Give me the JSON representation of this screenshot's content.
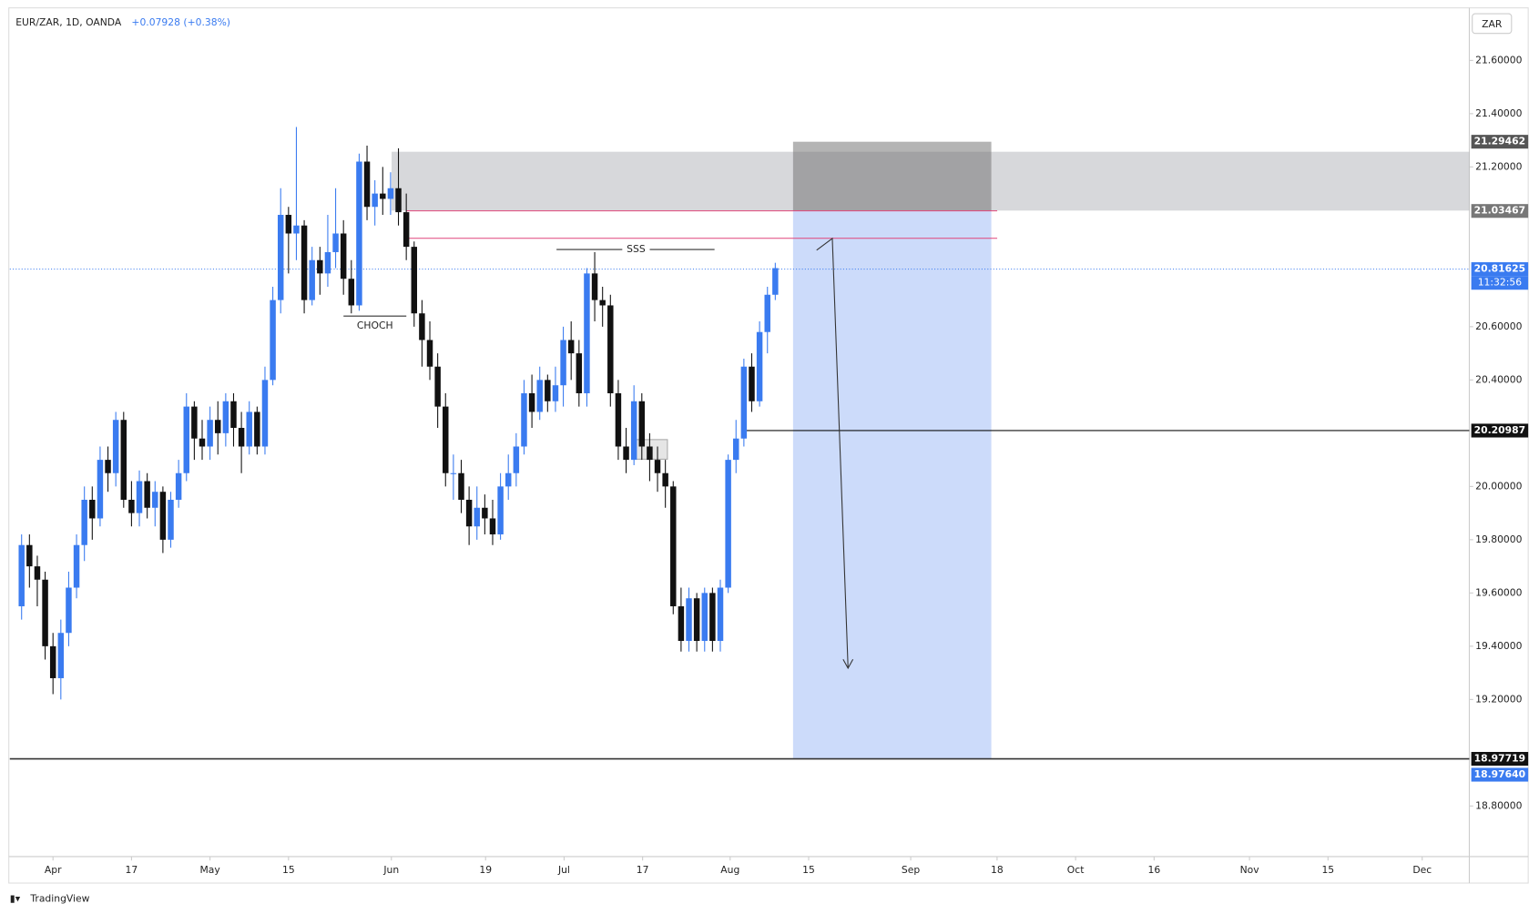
{
  "chart_data": {
    "type": "candlestick",
    "title": "EUR/ZAR, 1D, OANDA",
    "change": "+0.07928 (+0.38%)",
    "currency": "ZAR",
    "watermark": "TradingView",
    "up_color": "#3a7bf0",
    "down_color": "#111111",
    "open": [
      19.55,
      19.78,
      19.7,
      19.65,
      19.4,
      19.28,
      19.45,
      19.62,
      19.78,
      19.95,
      19.88,
      20.1,
      20.05,
      20.25,
      19.95,
      19.9,
      20.02,
      19.92,
      19.98,
      19.8,
      19.95,
      20.05,
      20.3,
      20.18,
      20.15,
      20.25,
      20.2,
      20.32,
      20.22,
      20.15,
      20.28,
      20.15,
      20.4,
      20.7,
      21.02,
      20.95,
      20.98,
      20.7,
      20.85,
      20.8,
      20.88,
      20.95,
      20.78,
      20.68,
      21.22,
      21.05,
      21.1,
      21.08,
      21.12,
      21.03,
      20.9,
      20.65,
      20.55,
      20.45,
      20.3,
      20.05,
      20.05,
      19.95,
      19.85,
      19.92,
      19.88,
      19.82,
      20.0,
      20.05,
      20.15,
      20.35,
      20.28,
      20.4,
      20.32,
      20.38,
      20.55,
      20.5,
      20.35,
      20.8,
      20.7,
      20.68,
      20.35,
      20.15,
      20.1,
      20.32,
      20.15,
      20.1,
      20.05,
      20.0,
      19.55,
      19.42,
      19.58,
      19.42,
      19.6,
      19.42,
      19.62,
      20.1,
      20.18,
      20.45,
      20.32,
      20.58,
      20.72
    ],
    "high": [
      19.82,
      19.82,
      19.74,
      19.68,
      19.45,
      19.5,
      19.68,
      19.82,
      20.0,
      20.0,
      20.15,
      20.15,
      20.28,
      20.28,
      20.02,
      20.06,
      20.05,
      20.02,
      20.0,
      19.98,
      20.1,
      20.35,
      20.32,
      20.25,
      20.3,
      20.32,
      20.35,
      20.35,
      20.28,
      20.32,
      20.3,
      20.45,
      20.75,
      21.12,
      21.05,
      21.35,
      21.0,
      20.9,
      20.9,
      21.02,
      21.12,
      21.0,
      20.85,
      21.25,
      21.28,
      21.15,
      21.2,
      21.18,
      21.27,
      21.1,
      20.92,
      20.7,
      20.62,
      20.5,
      20.35,
      20.12,
      20.1,
      20.0,
      20.0,
      19.97,
      19.95,
      20.05,
      20.12,
      20.2,
      20.4,
      20.42,
      20.45,
      20.42,
      20.45,
      20.6,
      20.62,
      20.55,
      20.82,
      20.88,
      20.75,
      20.72,
      20.4,
      20.22,
      20.38,
      20.35,
      20.2,
      20.15,
      20.1,
      20.02,
      19.62,
      19.62,
      19.6,
      19.62,
      19.62,
      19.65,
      20.12,
      20.25,
      20.48,
      20.5,
      20.62,
      20.75,
      20.84
    ],
    "low": [
      19.5,
      19.62,
      19.55,
      19.35,
      19.22,
      19.2,
      19.4,
      19.58,
      19.72,
      19.8,
      19.85,
      19.98,
      20.0,
      19.92,
      19.85,
      19.85,
      19.88,
      19.85,
      19.75,
      19.77,
      19.92,
      20.02,
      20.1,
      20.1,
      20.1,
      20.12,
      20.15,
      20.15,
      20.05,
      20.12,
      20.12,
      20.12,
      20.38,
      20.65,
      20.8,
      20.85,
      20.65,
      20.68,
      20.72,
      20.75,
      20.82,
      20.72,
      20.65,
      20.66,
      21.0,
      20.98,
      21.02,
      21.02,
      20.98,
      20.85,
      20.6,
      20.45,
      20.4,
      20.22,
      20.0,
      19.95,
      19.9,
      19.78,
      19.8,
      19.82,
      19.78,
      19.8,
      19.95,
      20.0,
      20.12,
      20.22,
      20.25,
      20.28,
      20.28,
      20.3,
      20.4,
      20.3,
      20.3,
      20.62,
      20.6,
      20.3,
      20.1,
      20.05,
      20.08,
      20.1,
      20.02,
      19.98,
      19.92,
      19.52,
      19.38,
      19.38,
      19.38,
      19.38,
      19.38,
      19.38,
      19.6,
      20.05,
      20.15,
      20.28,
      20.3,
      20.5,
      20.7
    ],
    "close": [
      19.78,
      19.7,
      19.65,
      19.4,
      19.28,
      19.45,
      19.62,
      19.78,
      19.95,
      19.88,
      20.1,
      20.05,
      20.25,
      19.95,
      19.9,
      20.02,
      19.92,
      19.98,
      19.8,
      19.95,
      20.05,
      20.3,
      20.18,
      20.15,
      20.25,
      20.2,
      20.32,
      20.22,
      20.15,
      20.28,
      20.15,
      20.4,
      20.7,
      21.02,
      20.95,
      20.98,
      20.7,
      20.85,
      20.8,
      20.88,
      20.95,
      20.78,
      20.68,
      21.22,
      21.05,
      21.1,
      21.08,
      21.12,
      21.03,
      20.9,
      20.65,
      20.55,
      20.45,
      20.3,
      20.05,
      20.05,
      19.95,
      19.85,
      19.92,
      19.88,
      19.82,
      20.0,
      20.05,
      20.15,
      20.35,
      20.28,
      20.4,
      20.32,
      20.38,
      20.55,
      20.5,
      20.35,
      20.8,
      20.7,
      20.68,
      20.35,
      20.15,
      20.1,
      20.32,
      20.15,
      20.1,
      20.05,
      20.0,
      19.55,
      19.42,
      19.58,
      19.42,
      19.6,
      19.42,
      19.62,
      20.1,
      20.18,
      20.45,
      20.32,
      20.58,
      20.72,
      20.82
    ],
    "xlim": [
      -1.5,
      184.4
    ],
    "xticks": [
      {
        "value": 4,
        "label": "Apr"
      },
      {
        "value": 14,
        "label": "17"
      },
      {
        "value": 24,
        "label": "May"
      },
      {
        "value": 34,
        "label": "15"
      },
      {
        "value": 47.1,
        "label": "Jun"
      },
      {
        "value": 59.1,
        "label": "19"
      },
      {
        "value": 69.1,
        "label": "Jul"
      },
      {
        "value": 79.1,
        "label": "17"
      },
      {
        "value": 90.25,
        "label": "Aug"
      },
      {
        "value": 100.25,
        "label": "15"
      },
      {
        "value": 113.25,
        "label": "Sep"
      },
      {
        "value": 124.25,
        "label": "18"
      },
      {
        "value": 134.25,
        "label": "Oct"
      },
      {
        "value": 144.25,
        "label": "16"
      },
      {
        "value": 156.4,
        "label": "Nov"
      },
      {
        "value": 166.4,
        "label": "15"
      },
      {
        "value": 178.4,
        "label": "Dec"
      }
    ],
    "ylim": [
      18.61,
      21.79
    ],
    "yticks": [
      {
        "value": 21.6,
        "label": "21.60000"
      },
      {
        "value": 21.4,
        "label": "21.40000"
      },
      {
        "value": 21.2,
        "label": "21.20000"
      },
      {
        "value": 20.6,
        "label": "20.60000"
      },
      {
        "value": 20.4,
        "label": "20.40000"
      },
      {
        "value": 20.0,
        "label": "20.00000"
      },
      {
        "value": 19.8,
        "label": "19.80000"
      },
      {
        "value": 19.6,
        "label": "19.60000"
      },
      {
        "value": 19.4,
        "label": "19.40000"
      },
      {
        "value": 19.2,
        "label": "19.20000"
      },
      {
        "value": 18.8,
        "label": "18.80000"
      }
    ],
    "price_labels": [
      {
        "value": 21.29462,
        "color": "#555555"
      },
      {
        "value": 21.03467,
        "color": "#777777"
      },
      {
        "value": 20.81625,
        "color": "#3a7bf0"
      },
      {
        "value": 20.20987,
        "color": "#111111"
      },
      {
        "value": 18.97719,
        "color": "#111111"
      },
      {
        "value": {
          "value": 18.9764,
          "label": "18.97640"
        },
        "color": "#3a7bf0"
      }
    ],
    "countdown": "11:32:56",
    "supply_zone": [
      21.036,
      21.257
    ],
    "stop_zone": [
      21.03467,
      21.29462
    ],
    "target_zone": [
      18.97719,
      21.03467
    ],
    "pink_levels": [
      21.035,
      20.932
    ],
    "sss_level": 20.89,
    "sss_label": "SSS",
    "choch_level": 20.64,
    "choch_label": "CHOCH"
  }
}
